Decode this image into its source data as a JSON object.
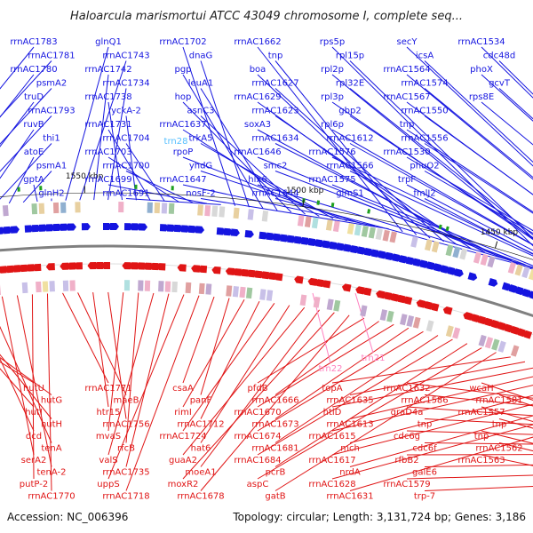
{
  "title": "Haloarcula marismortui ATCC 43049 chromosome I, complete seq...",
  "accession": "Accession: NC_006396",
  "stats": "Topology: circular; Length: 3,131,724 bp; Genes: 3,186",
  "colors": {
    "forward": "#1515e0",
    "reverse": "#e01515",
    "rna_forward": "#55bfff",
    "rna_reverse": "#ff80c0",
    "backbone": "#808080"
  },
  "ticks": [
    "1350 kbp",
    "1400 kbp",
    "1450 kbp",
    "1500 kbp",
    "1550 kbp"
  ],
  "forward_labels": [
    "rrnAC1783",
    "rrnAC1781",
    "rrnAC1780",
    "psmA2",
    "truD",
    "rrnAC1793",
    "ruvB",
    "thi1",
    "atoE",
    "psmA1",
    "gptA",
    "glnH2",
    "glnQ1",
    "rrnAC1743",
    "rrnAC1742",
    "rrnAC1734",
    "rrnAC1738",
    "yckA-2",
    "rrnAC1731",
    "rrnAC1704",
    "rrnAC1703",
    "rrnAC1700",
    "rrnAC1699",
    "rrnAC1691",
    "rrnAC1702",
    "dnaG",
    "pgp",
    "leuA1",
    "hop",
    "asnC3",
    "rrnAC1637",
    "trkA5",
    "rpoP",
    "yhdG",
    "rrnAC1647",
    "nosF-2",
    "rrnAC1662",
    "tnp",
    "boa",
    "rrnAC1627",
    "rrnAC1629",
    "rrnAC1623",
    "soxA3",
    "rrnAC1634",
    "rrnAC1646",
    "smc2",
    "hlx6",
    "rrnAC1644",
    "rps5p",
    "rpl15p",
    "rpl2p",
    "rpl32E",
    "rpl3p",
    "gbp2",
    "rpl6p",
    "rrnAC1612",
    "rrnAC1576",
    "rrnAC1566",
    "rrnAC1575",
    "glmS1",
    "secY",
    "icsA",
    "rrnAC1564",
    "rrnAC1574",
    "rrnAC1567",
    "rrnAC1550",
    "tnp",
    "rrnAC1556",
    "rrnAC1530",
    "phuO2",
    "trpF",
    "fmlJ2",
    "rrnAC1534",
    "cdc48d",
    "phoX",
    "gcvT",
    "rps8E"
  ],
  "rna_forward_labels": [
    "trn28"
  ],
  "reverse_labels": [
    "hutU",
    "hutG",
    "hutI",
    "hutH",
    "dcd",
    "tenA",
    "serA2",
    "tenA-2",
    "putP-2",
    "rrnAC1770",
    "rrnAC1771",
    "maeB",
    "htr15",
    "rrnAC1756",
    "mvaS",
    "rfcB",
    "valS",
    "rrnAC1735",
    "uppS",
    "rrnAC1718",
    "csaA",
    "panF",
    "rimI",
    "rrnAC1712",
    "rrnAC1724",
    "hat6",
    "guaA2",
    "moeA1",
    "moxR2",
    "rrnAC1678",
    "pfdB",
    "rrnAC1666",
    "rrnAC1670",
    "rrnAC1673",
    "rrnAC1674",
    "rrnAC1681",
    "rrnAC1684",
    "pcrB",
    "aspC",
    "gatB",
    "topA",
    "rrnAC1635",
    "htlD",
    "rrnAC1613",
    "rrnAC1615",
    "mch",
    "rrnAC1617",
    "nrdA",
    "rrnAC1628",
    "rrnAC1631",
    "rrnAC1632",
    "rrnAC1586",
    "graD4a",
    "tnp",
    "cdc6g",
    "cdc6f",
    "rfbB2",
    "galE6",
    "rrnAC1579",
    "trp-7",
    "wcaH",
    "rrnAC1581",
    "rrnAC1557",
    "tnp",
    "tnp",
    "rrnAC1562",
    "rrnAC1563"
  ],
  "rna_reverse_labels": [
    "trn22",
    "trn21"
  ]
}
